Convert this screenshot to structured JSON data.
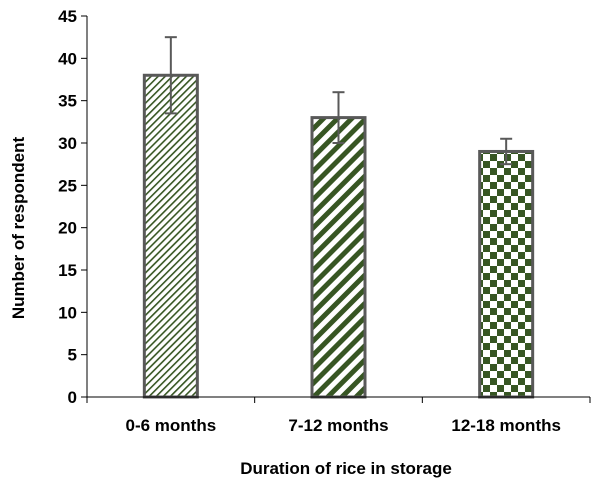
{
  "chart_data": {
    "type": "bar",
    "title": "",
    "xlabel": "Duration of rice in storage",
    "ylabel": "Number of respondent",
    "categories": [
      "0-6 months",
      "7-12 months",
      "12-18 months"
    ],
    "values": [
      38,
      33,
      29
    ],
    "error_upper": [
      42.5,
      36,
      30.5
    ],
    "error_lower": [
      33.5,
      30,
      27.5
    ],
    "ylim": [
      0,
      45
    ],
    "yticks": [
      "0",
      "5",
      "10",
      "15",
      "20",
      "25",
      "30",
      "35",
      "40",
      "45"
    ],
    "grid": false,
    "legend": "none",
    "bar_patterns": [
      "fine-diagonal-stripes",
      "wide-diagonal-stripes",
      "checkerboard"
    ],
    "colors": {
      "pattern": "#375623",
      "stroke": "#595959",
      "error_bar": "#595959",
      "axis": "#000000"
    }
  }
}
